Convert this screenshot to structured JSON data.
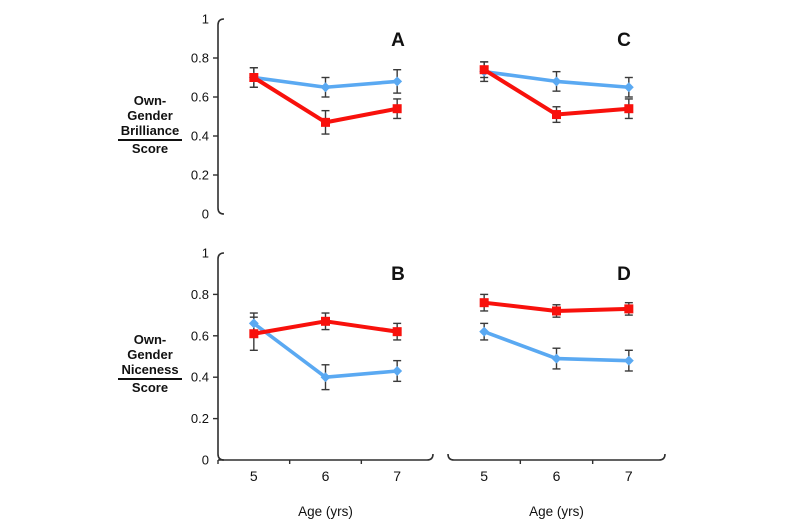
{
  "figure": {
    "background": "#ffffff",
    "row_labels": [
      {
        "lines": [
          "Own-",
          "Gender",
          "Brilliance",
          "Score"
        ],
        "underlined_line": "Brilliance"
      },
      {
        "lines": [
          "Own-",
          "Gender",
          "Niceness",
          "Score"
        ],
        "underlined_line": "Niceness"
      }
    ]
  },
  "colors": {
    "red_series": "#f8110c",
    "blue_series": "#5aa9f2",
    "error_bar": "#3a3a3a",
    "axis": "#2f2f2f",
    "text": "#111111"
  },
  "chart_data": [
    {
      "type": "line",
      "panel_label": "A",
      "row": 0,
      "col": 0,
      "x": [
        5,
        6,
        7
      ],
      "x_tick_labels": [
        "5",
        "6",
        "7"
      ],
      "xlabel": "",
      "ylabel": "Own-Gender Brilliance Score",
      "ylim": [
        0,
        1
      ],
      "yticks": [
        "0",
        "0.2",
        "0.4",
        "0.6",
        "0.8",
        "1"
      ],
      "grid": false,
      "legend": "none",
      "series": [
        {
          "name": "blue",
          "color_key": "blue_series",
          "marker": "diamond",
          "values": [
            0.7,
            0.65,
            0.68
          ],
          "errors": [
            0.05,
            0.05,
            0.06
          ]
        },
        {
          "name": "red",
          "color_key": "red_series",
          "marker": "square",
          "values": [
            0.7,
            0.47,
            0.54
          ],
          "errors": [
            0.05,
            0.06,
            0.05
          ]
        }
      ]
    },
    {
      "type": "line",
      "panel_label": "C",
      "row": 0,
      "col": 1,
      "x": [
        5,
        6,
        7
      ],
      "x_tick_labels": [
        "5",
        "6",
        "7"
      ],
      "xlabel": "",
      "ylabel": "Own-Gender Brilliance Score",
      "ylim": [
        0,
        1
      ],
      "yticks": [
        "0",
        "0.2",
        "0.4",
        "0.6",
        "0.8",
        "1"
      ],
      "grid": false,
      "legend": "none",
      "series": [
        {
          "name": "blue",
          "color_key": "blue_series",
          "marker": "diamond",
          "values": [
            0.73,
            0.68,
            0.65
          ],
          "errors": [
            0.05,
            0.05,
            0.05
          ]
        },
        {
          "name": "red",
          "color_key": "red_series",
          "marker": "square",
          "values": [
            0.74,
            0.51,
            0.54
          ],
          "errors": [
            0.04,
            0.04,
            0.05
          ]
        }
      ]
    },
    {
      "type": "line",
      "panel_label": "B",
      "row": 1,
      "col": 0,
      "x": [
        5,
        6,
        7
      ],
      "x_tick_labels": [
        "5",
        "6",
        "7"
      ],
      "xlabel": "Age (yrs)",
      "ylabel": "Own-Gender Niceness Score",
      "ylim": [
        0,
        1
      ],
      "yticks": [
        "0",
        "0.2",
        "0.4",
        "0.6",
        "0.8",
        "1"
      ],
      "grid": false,
      "legend": "none",
      "series": [
        {
          "name": "blue",
          "color_key": "blue_series",
          "marker": "diamond",
          "values": [
            0.66,
            0.4,
            0.43
          ],
          "errors": [
            0.05,
            0.06,
            0.05
          ]
        },
        {
          "name": "red",
          "color_key": "red_series",
          "marker": "square",
          "values": [
            0.61,
            0.67,
            0.62
          ],
          "errors": [
            0.08,
            0.04,
            0.04
          ]
        }
      ]
    },
    {
      "type": "line",
      "panel_label": "D",
      "row": 1,
      "col": 1,
      "x": [
        5,
        6,
        7
      ],
      "x_tick_labels": [
        "5",
        "6",
        "7"
      ],
      "xlabel": "Age (yrs)",
      "ylabel": "Own-Gender Niceness Score",
      "ylim": [
        0,
        1
      ],
      "yticks": [
        "0",
        "0.2",
        "0.4",
        "0.6",
        "0.8",
        "1"
      ],
      "grid": false,
      "legend": "none",
      "series": [
        {
          "name": "blue",
          "color_key": "blue_series",
          "marker": "diamond",
          "values": [
            0.62,
            0.49,
            0.48
          ],
          "errors": [
            0.04,
            0.05,
            0.05
          ]
        },
        {
          "name": "red",
          "color_key": "red_series",
          "marker": "square",
          "values": [
            0.76,
            0.72,
            0.73
          ],
          "errors": [
            0.04,
            0.03,
            0.03
          ]
        }
      ]
    }
  ]
}
